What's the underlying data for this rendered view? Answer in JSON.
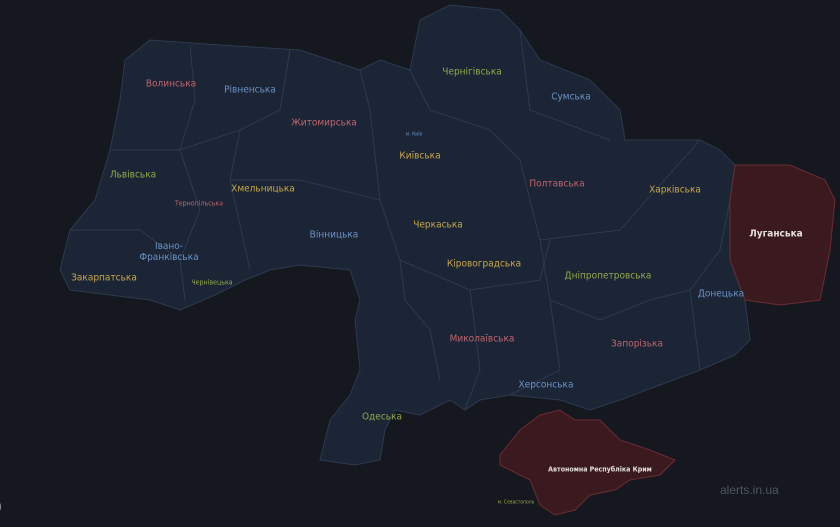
{
  "colors": {
    "background": "#15181e",
    "region_fill": "#1b2535",
    "region_border": "#2c3a4f",
    "alert_fill": "#3a1a1f",
    "alert_border": "#6b2c33",
    "pink": "#c0646e",
    "blue": "#6b92c6",
    "yellow": "#c9a74a",
    "green": "#93a84a",
    "white": "#e6e0e0"
  },
  "regions": [
    {
      "name": "Волинська",
      "color": "pink",
      "alert": false
    },
    {
      "name": "Рівненська",
      "color": "blue",
      "alert": false
    },
    {
      "name": "Житомирська",
      "color": "pink",
      "alert": false
    },
    {
      "name": "Чернігівська",
      "color": "green",
      "alert": false
    },
    {
      "name": "Сумська",
      "color": "blue",
      "alert": false
    },
    {
      "name": "м. Київ",
      "color": "blue",
      "alert": false
    },
    {
      "name": "Київська",
      "color": "yellow",
      "alert": false
    },
    {
      "name": "Львівська",
      "color": "green",
      "alert": false
    },
    {
      "name": "Хмельницька",
      "color": "yellow",
      "alert": false
    },
    {
      "name": "Тернопільська",
      "color": "pink",
      "alert": false
    },
    {
      "name": "Полтавська",
      "color": "pink",
      "alert": false
    },
    {
      "name": "Харківська",
      "color": "yellow",
      "alert": false
    },
    {
      "name": "Луганська",
      "color": "white",
      "alert": true
    },
    {
      "name": "Вінницька",
      "color": "blue",
      "alert": false
    },
    {
      "name": "Черкаська",
      "color": "yellow",
      "alert": false
    },
    {
      "name": "Івано-\nФранківська",
      "color": "blue",
      "alert": false
    },
    {
      "name": "Кіровоградська",
      "color": "yellow",
      "alert": false
    },
    {
      "name": "Дніпропетровська",
      "color": "green",
      "alert": false
    },
    {
      "name": "Закарпатська",
      "color": "yellow",
      "alert": false
    },
    {
      "name": "Чернівецька",
      "color": "green",
      "alert": false
    },
    {
      "name": "Донецька",
      "color": "blue",
      "alert": false
    },
    {
      "name": "Миколаївська",
      "color": "pink",
      "alert": false
    },
    {
      "name": "Запорізька",
      "color": "pink",
      "alert": false
    },
    {
      "name": "Херсонська",
      "color": "blue",
      "alert": false
    },
    {
      "name": "Одеська",
      "color": "green",
      "alert": false
    },
    {
      "name": "Автономна Республіка Крим",
      "color": "white",
      "alert": true
    },
    {
      "name": "м. Севастополь",
      "color": "green",
      "alert": false
    }
  ],
  "watermark": "alerts.in.ua",
  "edge_text": ")"
}
